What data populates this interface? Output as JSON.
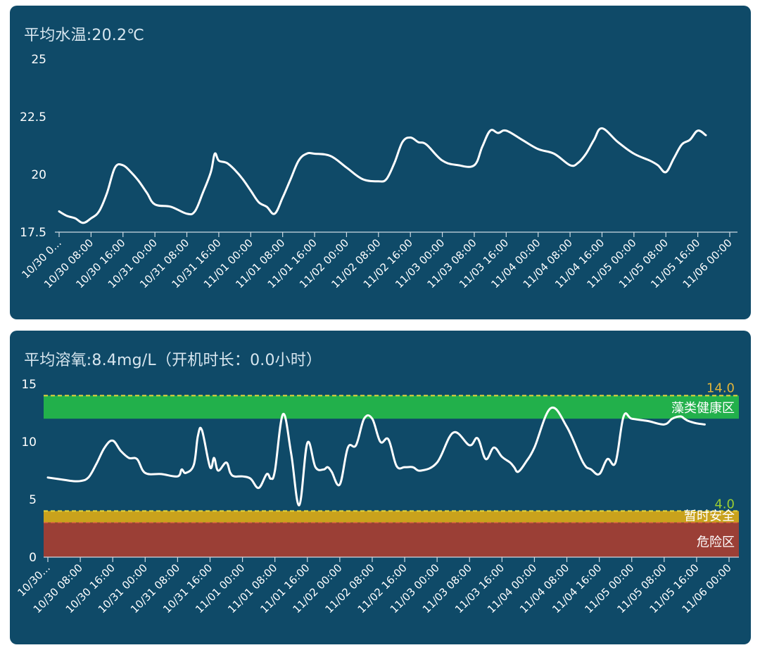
{
  "cards": {
    "temperature": {
      "title": "平均水温:20.2℃"
    },
    "dissolved_oxygen": {
      "title": "平均溶氧:8.4mg/L（开机时长：0.0小时）"
    }
  },
  "colors": {
    "card_bg": "#0f4a68",
    "line": "#ffffff",
    "zone_healthy": "#22b04b",
    "zone_safe": "#c9a21c",
    "zone_danger": "#9b3f36",
    "threshold_line": "#e7d73a",
    "label_14": "#e0b43a",
    "label_4": "#9acd32",
    "danger_marker": "#ff3b30"
  },
  "chart_data": [
    {
      "type": "line",
      "title": "平均水温:20.2℃",
      "ylim": [
        17.5,
        25
      ],
      "yticks": [
        "25",
        "22.5",
        "20",
        "17.5"
      ],
      "xlim": [
        "10/30 00:00",
        "11/06 00:00"
      ],
      "xtick_labels": [
        "10/30 0...",
        "10/30 08:00",
        "10/30 16:00",
        "10/31 00:00",
        "10/31 08:00",
        "10/31 16:00",
        "11/01 00:00",
        "11/01 08:00",
        "11/01 16:00",
        "11/02 00:00",
        "11/02 08:00",
        "11/02 16:00",
        "11/03 00:00",
        "11/03 08:00",
        "11/03 16:00",
        "11/04 00:00",
        "11/04 08:00",
        "11/04 16:00",
        "11/05 00:00",
        "11/05 08:00",
        "11/05 16:00",
        "11/06 00:00"
      ],
      "grid": false,
      "series": [
        {
          "x": [
            "10/30 00:00",
            "10/30 02:00",
            "10/30 04:00",
            "10/30 06:00",
            "10/30 08:00",
            "10/30 10:00",
            "10/30 12:00",
            "10/30 14:00",
            "10/30 16:00",
            "10/30 18:00",
            "10/30 20:00",
            "10/30 22:00",
            "10/31 00:00",
            "10/31 04:00",
            "10/31 08:00",
            "10/31 10:00",
            "10/31 12:00",
            "10/31 14:00",
            "10/31 15:00",
            "10/31 16:00",
            "10/31 18:00",
            "10/31 20:00",
            "10/31 22:00",
            "11/01 00:00",
            "11/01 02:00",
            "11/01 04:00",
            "11/01 06:00",
            "11/01 08:00",
            "11/01 10:00",
            "11/01 12:00",
            "11/01 14:00",
            "11/01 16:00",
            "11/01 20:00",
            "11/02 00:00",
            "11/02 04:00",
            "11/02 08:00",
            "11/02 10:00",
            "11/02 12:00",
            "11/02 14:00",
            "11/02 16:00",
            "11/02 18:00",
            "11/02 20:00",
            "11/03 00:00",
            "11/03 04:00",
            "11/03 08:00",
            "11/03 10:00",
            "11/03 12:00",
            "11/03 14:00",
            "11/03 16:00",
            "11/03 20:00",
            "11/04 00:00",
            "11/04 04:00",
            "11/04 08:00",
            "11/04 10:00",
            "11/04 12:00",
            "11/04 14:00",
            "11/04 16:00",
            "11/04 20:00",
            "11/05 00:00",
            "11/05 04:00",
            "11/05 06:00",
            "11/05 08:00",
            "11/05 10:00",
            "11/05 12:00",
            "11/05 14:00",
            "11/05 16:00",
            "11/05 18:00"
          ],
          "values": [
            18.4,
            18.2,
            18.1,
            17.9,
            18.1,
            18.4,
            19.2,
            20.3,
            20.4,
            20.1,
            19.7,
            19.2,
            18.7,
            18.6,
            18.3,
            18.4,
            19.2,
            20.1,
            20.9,
            20.6,
            20.5,
            20.2,
            19.8,
            19.3,
            18.8,
            18.6,
            18.3,
            19.0,
            19.8,
            20.6,
            20.9,
            20.9,
            20.8,
            20.3,
            19.8,
            19.7,
            19.8,
            20.5,
            21.4,
            21.6,
            21.4,
            21.3,
            20.6,
            20.4,
            20.4,
            21.2,
            21.9,
            21.8,
            21.9,
            21.5,
            21.1,
            20.9,
            20.4,
            20.5,
            20.9,
            21.5,
            22.0,
            21.4,
            20.9,
            20.6,
            20.4,
            20.1,
            20.7,
            21.3,
            21.5,
            21.9,
            21.7
          ]
        }
      ]
    },
    {
      "type": "line",
      "title": "平均溶氧:8.4mg/L（开机时长：0.0小时）",
      "ylim": [
        0,
        15
      ],
      "yticks": [
        "15",
        "10",
        "5",
        "0"
      ],
      "xlim": [
        "10/30 00:00",
        "11/06 00:00"
      ],
      "xtick_labels": [
        "10/30...",
        "10/30 08:00",
        "10/30 16:00",
        "10/31 00:00",
        "10/31 08:00",
        "10/31 16:00",
        "11/01 00:00",
        "11/01 08:00",
        "11/01 16:00",
        "11/02 00:00",
        "11/02 08:00",
        "11/02 16:00",
        "11/03 00:00",
        "11/03 08:00",
        "11/03 16:00",
        "11/04 00:00",
        "11/04 08:00",
        "11/04 16:00",
        "11/05 00:00",
        "11/05 08:00",
        "11/05 16:00",
        "11/06 00:00"
      ],
      "grid": false,
      "zones": [
        {
          "name": "藻类健康区",
          "from": 12.0,
          "to": 14.0,
          "color": "#22b04b"
        },
        {
          "name": "暂时安全",
          "from": 3.0,
          "to": 4.0,
          "color": "#c9a21c"
        },
        {
          "name": "危险区",
          "from": 0.0,
          "to": 3.0,
          "color": "#9b3f36"
        }
      ],
      "thresholds": [
        {
          "label": "14.0",
          "value": 14.0
        },
        {
          "label": "4.0",
          "value": 4.0
        }
      ],
      "series": [
        {
          "x": [
            "10/30 00:00",
            "10/30 04:00",
            "10/30 06:00",
            "10/30 08:00",
            "10/30 10:00",
            "10/30 12:00",
            "10/30 14:00",
            "10/30 16:00",
            "10/30 18:00",
            "10/30 20:00",
            "10/30 22:00",
            "10/31 00:00",
            "10/31 04:00",
            "10/31 08:00",
            "10/31 09:00",
            "10/31 10:00",
            "10/31 12:00",
            "10/31 13:00",
            "10/31 14:00",
            "10/31 16:00",
            "10/31 17:00",
            "10/31 18:00",
            "10/31 20:00",
            "10/31 21:00",
            "10/31 22:00",
            "11/01 00:00",
            "11/01 02:00",
            "11/01 04:00",
            "11/01 06:00",
            "11/01 07:00",
            "11/01 08:00",
            "11/01 10:00",
            "11/01 12:00",
            "11/01 14:00",
            "11/01 16:00",
            "11/01 18:00",
            "11/01 20:00",
            "11/01 21:00",
            "11/01 22:00",
            "11/02 00:00",
            "11/02 02:00",
            "11/02 04:00",
            "11/02 06:00",
            "11/02 08:00",
            "11/02 10:00",
            "11/02 12:00",
            "11/02 14:00",
            "11/02 16:00",
            "11/02 18:00",
            "11/02 20:00",
            "11/03 00:00",
            "11/03 04:00",
            "11/03 08:00",
            "11/03 10:00",
            "11/03 12:00",
            "11/03 14:00",
            "11/03 16:00",
            "11/03 18:00",
            "11/03 19:00",
            "11/03 20:00",
            "11/03 22:00",
            "11/04 00:00",
            "11/04 04:00",
            "11/04 08:00",
            "11/04 12:00",
            "11/04 14:00",
            "11/04 16:00",
            "11/04 18:00",
            "11/04 20:00",
            "11/04 22:00",
            "11/05 00:00",
            "11/05 04:00",
            "11/05 08:00",
            "11/05 10:00",
            "11/05 12:00",
            "11/05 13:00",
            "11/05 14:00",
            "11/05 16:00",
            "11/05 18:00"
          ],
          "values": [
            6.9,
            6.7,
            6.6,
            6.6,
            6.9,
            8.1,
            9.5,
            10.1,
            9.2,
            8.6,
            8.5,
            7.3,
            7.2,
            7.0,
            7.6,
            7.3,
            8.0,
            10.5,
            11.0,
            7.8,
            8.6,
            7.5,
            8.2,
            7.3,
            7.0,
            7.0,
            6.8,
            6.0,
            7.2,
            6.8,
            7.5,
            12.4,
            9.0,
            4.5,
            9.9,
            7.8,
            7.6,
            7.8,
            7.4,
            6.3,
            9.5,
            9.7,
            12.0,
            12.0,
            10.0,
            10.2,
            7.9,
            7.8,
            7.8,
            7.5,
            8.2,
            10.8,
            9.7,
            10.3,
            8.5,
            9.5,
            8.7,
            8.2,
            7.8,
            7.4,
            8.3,
            9.5,
            12.9,
            11.3,
            8.2,
            7.6,
            7.2,
            8.5,
            8.2,
            12.2,
            12.0,
            11.8,
            11.5,
            12.0,
            12.2,
            12.0,
            11.8,
            11.6,
            11.5
          ]
        }
      ]
    }
  ]
}
